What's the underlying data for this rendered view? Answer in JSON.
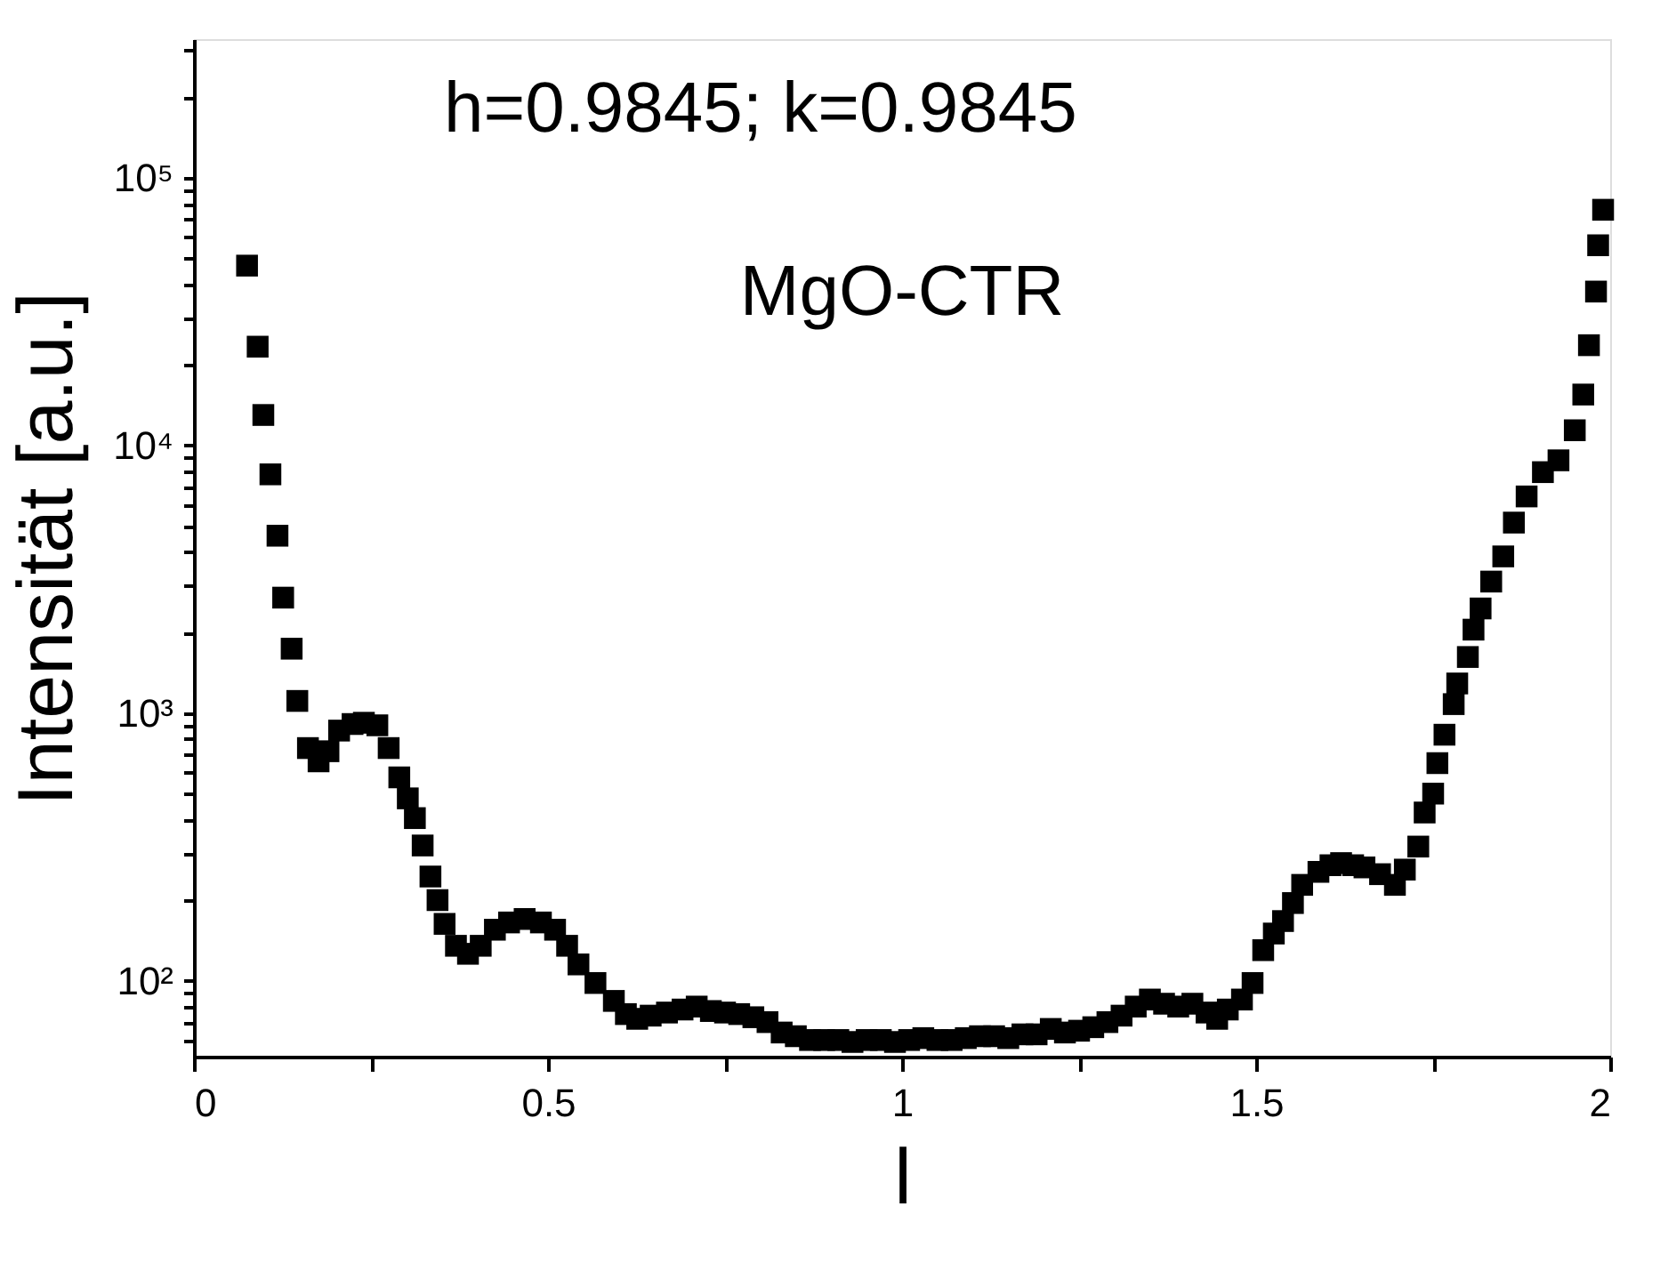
{
  "chart_data": {
    "type": "scatter",
    "xlabel": "l",
    "ylabel": "Intensität [a.u.]",
    "annotations": [
      "h=0.9845; k=0.9845",
      "MgO-CTR"
    ],
    "marker": "square",
    "log": "y",
    "grid": false,
    "xlim": [
      0,
      2
    ],
    "xticks": [
      0,
      {
        "value": 0.25,
        "label": null
      },
      0.5,
      {
        "value": 0.75,
        "label": null
      },
      1,
      {
        "value": 1.25,
        "label": null
      },
      1.5,
      {
        "value": 1.75,
        "label": null
      },
      2
    ],
    "ylim": [
      52,
      330000
    ],
    "yticks": [
      {
        "value": 60,
        "label": null
      },
      {
        "value": 70,
        "label": null
      },
      {
        "value": 80,
        "label": null
      },
      {
        "value": 90,
        "label": null
      },
      {
        "value": 100,
        "label": "10²"
      },
      {
        "value": 200,
        "label": null
      },
      {
        "value": 300,
        "label": null
      },
      {
        "value": 400,
        "label": null
      },
      {
        "value": 500,
        "label": null
      },
      {
        "value": 600,
        "label": null
      },
      {
        "value": 700,
        "label": null
      },
      {
        "value": 800,
        "label": null
      },
      {
        "value": 900,
        "label": null
      },
      {
        "value": 1000,
        "label": "10³"
      },
      {
        "value": 2000,
        "label": null
      },
      {
        "value": 3000,
        "label": null
      },
      {
        "value": 4000,
        "label": null
      },
      {
        "value": 5000,
        "label": null
      },
      {
        "value": 6000,
        "label": null
      },
      {
        "value": 7000,
        "label": null
      },
      {
        "value": 8000,
        "label": null
      },
      {
        "value": 9000,
        "label": null
      },
      {
        "value": 10000,
        "label": "10⁴"
      },
      {
        "value": 20000,
        "label": null
      },
      {
        "value": 30000,
        "label": null
      },
      {
        "value": 40000,
        "label": null
      },
      {
        "value": 50000,
        "label": null
      },
      {
        "value": 60000,
        "label": null
      },
      {
        "value": 70000,
        "label": null
      },
      {
        "value": 80000,
        "label": null
      },
      {
        "value": 90000,
        "label": null
      },
      {
        "value": 100000,
        "label": "10⁵"
      },
      {
        "value": 200000,
        "label": null
      },
      {
        "value": 300000,
        "label": null
      }
    ],
    "series": [
      {
        "color": "#000000",
        "x": [
          0.075,
          0.09,
          0.098,
          0.108,
          0.118,
          0.126,
          0.138,
          0.146,
          0.161,
          0.176,
          0.19,
          0.205,
          0.224,
          0.24,
          0.259,
          0.275,
          0.29,
          0.302,
          0.312,
          0.323,
          0.334,
          0.344,
          0.354,
          0.37,
          0.387,
          0.405,
          0.425,
          0.445,
          0.467,
          0.49,
          0.51,
          0.527,
          0.543,
          0.567,
          0.593,
          0.61,
          0.626,
          0.645,
          0.668,
          0.69,
          0.71,
          0.73,
          0.75,
          0.77,
          0.79,
          0.81,
          0.83,
          0.85,
          0.87,
          0.89,
          0.91,
          0.93,
          0.95,
          0.97,
          0.99,
          1.01,
          1.03,
          1.05,
          1.07,
          1.09,
          1.11,
          1.13,
          1.15,
          1.17,
          1.19,
          1.21,
          1.23,
          1.25,
          1.27,
          1.29,
          1.31,
          1.33,
          1.35,
          1.37,
          1.39,
          1.41,
          1.43,
          1.445,
          1.46,
          1.48,
          1.495,
          1.51,
          1.525,
          1.538,
          1.552,
          1.565,
          1.588,
          1.605,
          1.62,
          1.637,
          1.653,
          1.675,
          1.696,
          1.71,
          1.729,
          1.738,
          1.75,
          1.756,
          1.766,
          1.779,
          1.784,
          1.799,
          1.807,
          1.817,
          1.832,
          1.849,
          1.864,
          1.882,
          1.905,
          1.927,
          1.95,
          1.962,
          1.97,
          1.98,
          1.983,
          1.99
        ],
        "values": [
          47000,
          23400,
          13000,
          7800,
          4600,
          2700,
          1740,
          1110,
          740,
          660,
          720,
          860,
          910,
          920,
          900,
          740,
          575,
          480,
          405,
          320,
          245,
          200,
          163,
          135,
          126,
          135,
          155,
          165,
          170,
          165,
          155,
          135,
          115,
          98,
          84,
          75,
          72,
          74,
          76,
          78,
          80,
          77,
          76,
          75,
          73,
          70,
          64,
          62,
          60,
          60,
          60,
          59,
          60,
          60,
          59,
          60,
          61,
          60,
          60,
          61,
          62,
          62,
          61,
          63,
          63,
          66,
          64,
          65,
          67,
          70,
          74,
          80,
          85,
          82,
          80,
          82,
          76,
          72,
          78,
          85,
          98,
          130,
          150,
          167,
          195,
          228,
          255,
          270,
          275,
          270,
          265,
          250,
          228,
          260,
          317,
          425,
          500,
          650,
          830,
          1080,
          1290,
          1620,
          2050,
          2460,
          3100,
          3850,
          5150,
          6450,
          7950,
          8800,
          11400,
          15500,
          23700,
          37600,
          56000,
          76000
        ]
      }
    ]
  }
}
